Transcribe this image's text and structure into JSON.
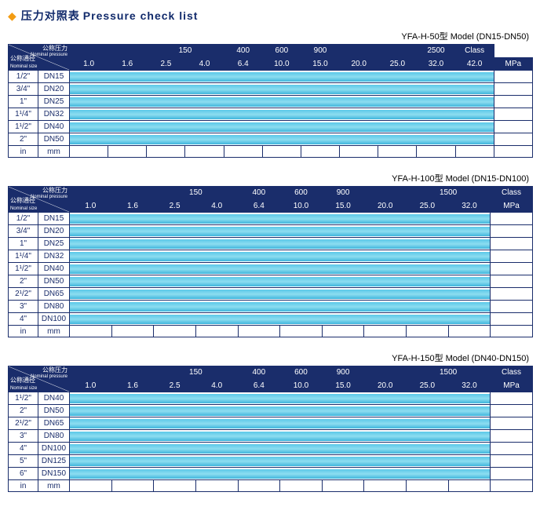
{
  "title_cn": "压力对照表",
  "title_en": "Pressure check list",
  "corner": {
    "top_cn": "公称压力",
    "top_en": "Nominal pressure",
    "bot_cn": "公称通径",
    "bot_en": "Nominal size"
  },
  "colors": {
    "header_bg": "#1a2d6b",
    "header_fg": "#ffffff",
    "border": "#1a2d6b",
    "size_fg": "#1a2d6b",
    "band_top": "#5bc8e8",
    "band_mid": "#8dddf0",
    "band_bot": "#3fb5dc",
    "diamond": "#f39c12"
  },
  "tables": [
    {
      "model": "YFA-H-50型   Model (DN15-DN50)",
      "class_groups": [
        {
          "label": "",
          "span": 2
        },
        {
          "label": "150",
          "span": 2
        },
        {
          "label": "",
          "span": 0
        },
        {
          "label": "400",
          "span": 1
        },
        {
          "label": "600",
          "span": 1
        },
        {
          "label": "900",
          "span": 1
        },
        {
          "label": "",
          "span": 1
        },
        {
          "label": "",
          "span": 1
        },
        {
          "label": "2500",
          "span": 1
        },
        {
          "label": "Class",
          "span": 1
        }
      ],
      "class_row": [
        "",
        "",
        "150",
        "",
        "400",
        "600",
        "900",
        "",
        "",
        "2500",
        "Class"
      ],
      "class_spans": [
        2,
        2,
        1,
        1,
        1,
        1,
        1,
        1,
        1
      ],
      "mpa": [
        "1.0",
        "1.6",
        "2.5",
        "4.0",
        "6.4",
        "10.0",
        "15.0",
        "20.0",
        "25.0",
        "32.0",
        "42.0",
        "MPa"
      ],
      "sizes": [
        {
          "in": "1/2\"",
          "mm": "DN15",
          "cols": 11
        },
        {
          "in": "3/4\"",
          "mm": "DN20",
          "cols": 11
        },
        {
          "in": "1\"",
          "mm": "DN25",
          "cols": 11
        },
        {
          "in": "1¹/4\"",
          "mm": "DN32",
          "cols": 11
        },
        {
          "in": "1¹/2\"",
          "mm": "DN40",
          "cols": 11
        },
        {
          "in": "2\"",
          "mm": "DN50",
          "cols": 11
        }
      ],
      "footer": {
        "in": "in",
        "mm": "mm"
      }
    },
    {
      "model": "YFA-H-100型   Model (DN15-DN100)",
      "mpa": [
        "1.0",
        "1.6",
        "2.5",
        "4.0",
        "6.4",
        "10.0",
        "15.0",
        "20.0",
        "25.0",
        "32.0",
        "MPa"
      ],
      "class_row_labels": [
        "",
        "150",
        "",
        "400",
        "600",
        "900",
        "",
        "1500",
        "",
        "Class"
      ],
      "sizes": [
        {
          "in": "1/2\"",
          "mm": "DN15",
          "cols": 10
        },
        {
          "in": "3/4\"",
          "mm": "DN20",
          "cols": 10
        },
        {
          "in": "1\"",
          "mm": "DN25",
          "cols": 10
        },
        {
          "in": "1¹/4\"",
          "mm": "DN32",
          "cols": 10
        },
        {
          "in": "1¹/2\"",
          "mm": "DN40",
          "cols": 10
        },
        {
          "in": "2\"",
          "mm": "DN50",
          "cols": 10
        },
        {
          "in": "2¹/2\"",
          "mm": "DN65",
          "cols": 10
        },
        {
          "in": "3\"",
          "mm": "DN80",
          "cols": 10
        },
        {
          "in": "4\"",
          "mm": "DN100",
          "cols": 10
        }
      ],
      "footer": {
        "in": "in",
        "mm": "mm"
      }
    },
    {
      "model": "YFA-H-150型   Model (DN40-DN150)",
      "mpa": [
        "1.0",
        "1.6",
        "2.5",
        "4.0",
        "6.4",
        "10.0",
        "15.0",
        "20.0",
        "25.0",
        "32.0",
        "MPa"
      ],
      "class_row_labels": [
        "",
        "150",
        "",
        "400",
        "600",
        "900",
        "",
        "1500",
        "",
        "Class"
      ],
      "sizes": [
        {
          "in": "1¹/2\"",
          "mm": "DN40",
          "cols": 10
        },
        {
          "in": "2\"",
          "mm": "DN50",
          "cols": 10
        },
        {
          "in": "2¹/2\"",
          "mm": "DN65",
          "cols": 10
        },
        {
          "in": "3\"",
          "mm": "DN80",
          "cols": 10
        },
        {
          "in": "4\"",
          "mm": "DN100",
          "cols": 10
        },
        {
          "in": "5\"",
          "mm": "DN125",
          "cols": 10
        },
        {
          "in": "6\"",
          "mm": "DN150",
          "cols": 10
        }
      ],
      "footer": {
        "in": "in",
        "mm": "mm"
      }
    }
  ]
}
